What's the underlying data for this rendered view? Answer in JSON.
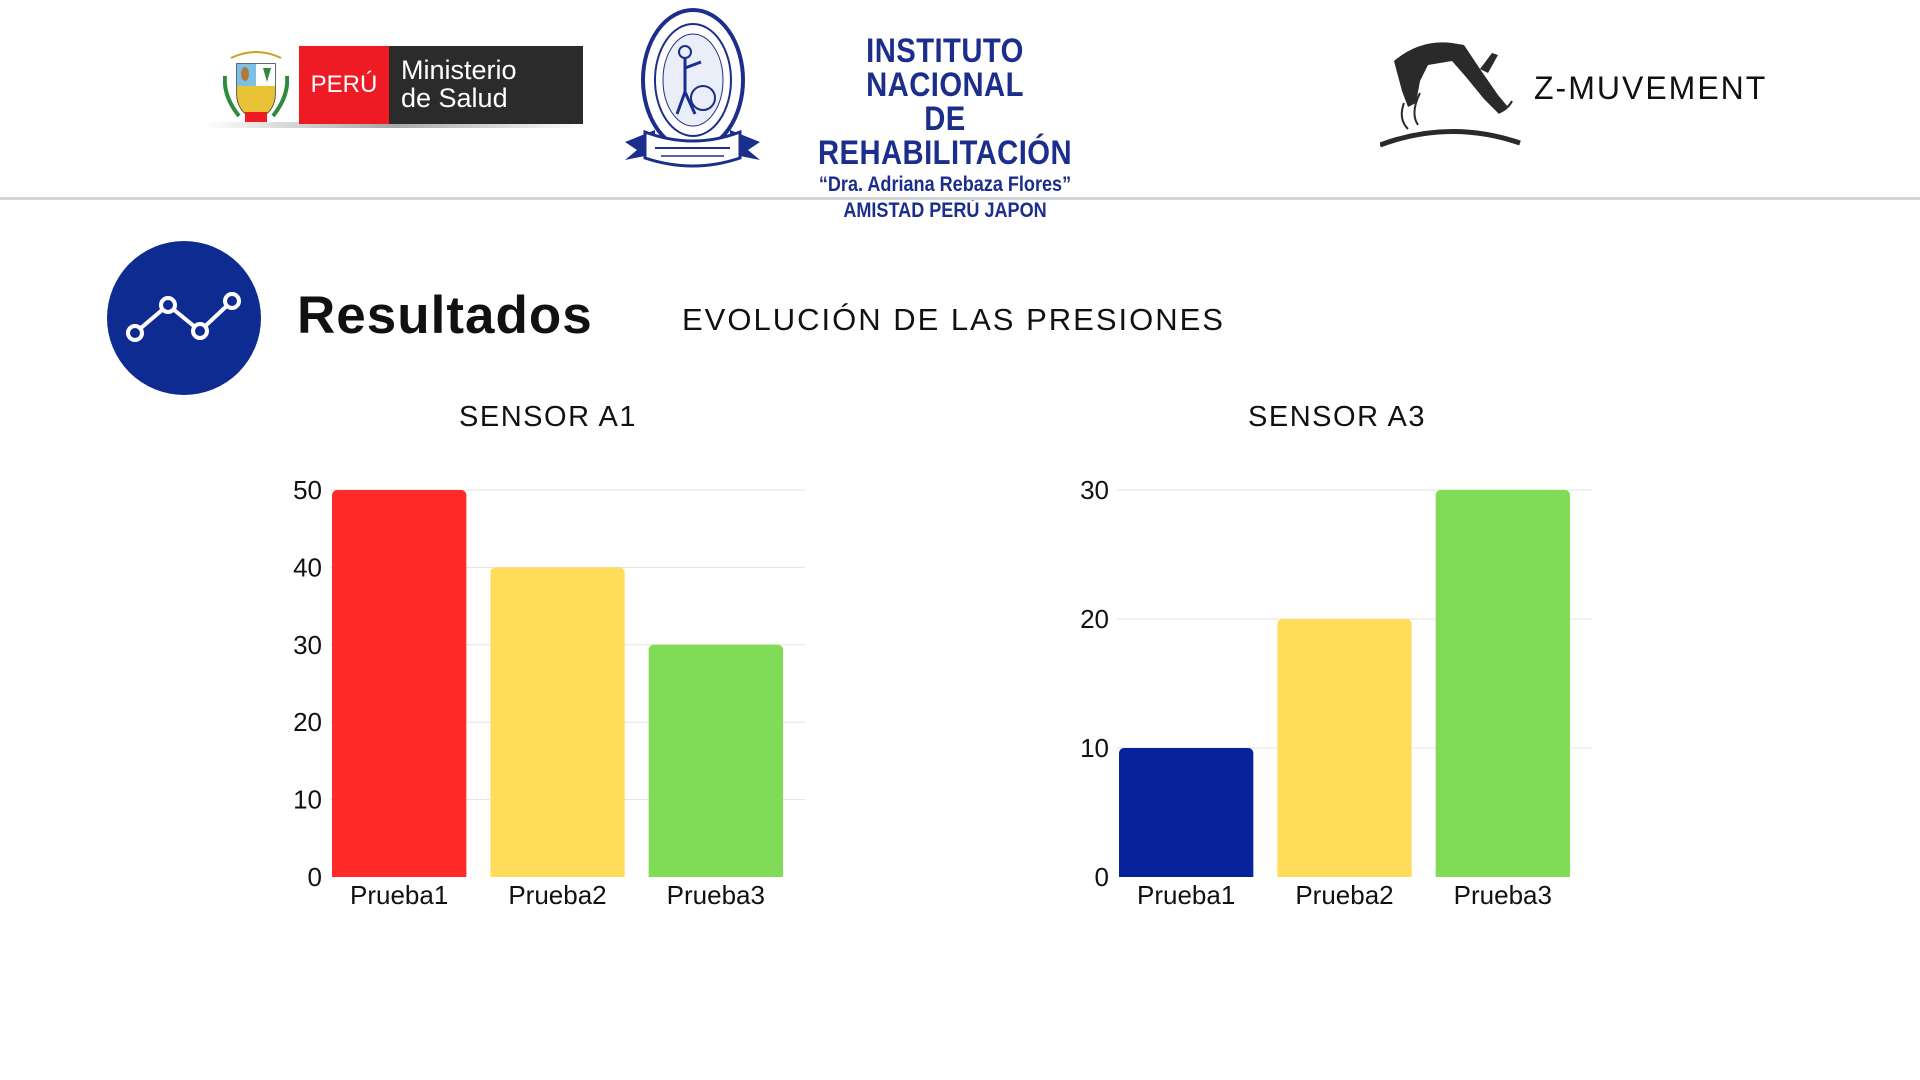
{
  "header": {
    "minsa": {
      "peru": "PERÚ",
      "line1": "Ministerio",
      "line2": "de Salud"
    },
    "inr": {
      "line1": "INSTITUTO NACIONAL",
      "line2": "DE REHABILITACIÓN",
      "line3": "“Dra. Adriana Rebaza Flores”",
      "line4": "AMISTAD PERÚ JAPON"
    },
    "brand": "Z-MUVEMENT"
  },
  "section": {
    "title": "Resultados",
    "subtitle": "EVOLUCIÓN DE LAS PRESIONES",
    "icon": "line-chart-icon",
    "icon_color": "#0e2b91"
  },
  "chart_data": [
    {
      "type": "bar",
      "title": "SENSOR A1",
      "categories": [
        "Prueba1",
        "Prueba2",
        "Prueba3"
      ],
      "values": [
        50,
        40,
        30
      ],
      "colors": [
        "#ff2a2a",
        "#ffdc5a",
        "#80db57"
      ],
      "ylim": [
        0,
        50
      ],
      "yticks": [
        0,
        10,
        20,
        30,
        40,
        50
      ],
      "grid": true
    },
    {
      "type": "bar",
      "title": "SENSOR A3",
      "categories": [
        "Prueba1",
        "Prueba2",
        "Prueba3"
      ],
      "values": [
        10,
        20,
        30
      ],
      "colors": [
        "#08229c",
        "#ffdc5a",
        "#80db57"
      ],
      "ylim": [
        0,
        30
      ],
      "yticks": [
        0,
        10,
        20,
        30
      ],
      "grid": true
    }
  ]
}
